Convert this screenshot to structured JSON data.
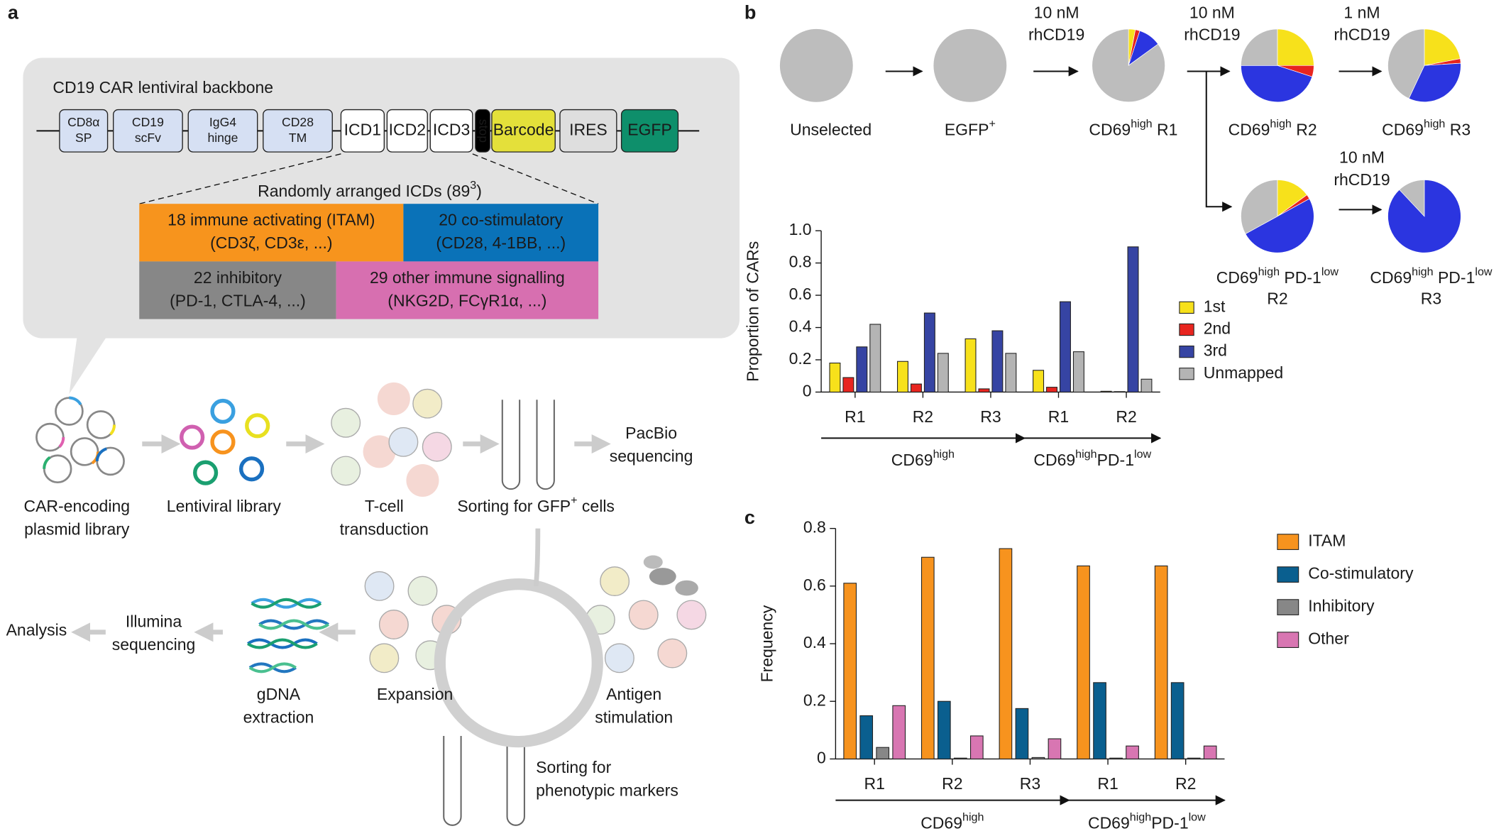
{
  "panel_labels": [
    "a",
    "b",
    "c"
  ],
  "diagram": {
    "title": "CD19 CAR lentiviral backbone",
    "segments": [
      [
        "CD8α",
        "SP"
      ],
      [
        "CD19",
        "scFv"
      ],
      [
        "IgG4",
        "hinge"
      ],
      [
        "CD28",
        "TM"
      ],
      [
        "ICD1"
      ],
      [
        "ICD2"
      ],
      [
        "ICD3"
      ],
      [
        "stop"
      ],
      [
        "Barcode"
      ],
      [
        "IRES"
      ],
      [
        "EGFP"
      ]
    ],
    "arrangement": [
      "Randomly arranged ICDs (89",
      "3",
      ")"
    ],
    "icd_classes": [
      [
        "18 immune activating (ITAM)",
        "(CD3ζ, CD3ε, ...)"
      ],
      [
        "20 co-stimulatory",
        "(CD28, 4-1BB, ...)"
      ],
      [
        "22 inhibitory",
        "(PD-1, CTLA-4, ...)"
      ],
      [
        "29 other immune signalling",
        "(NKG2D, FCγR1α, ...)"
      ]
    ],
    "steps": [
      [
        "CAR-encoding",
        "plasmid library"
      ],
      [
        "Lentiviral library"
      ],
      [
        "T-cell",
        "transduction"
      ],
      [
        [
          "Sorting for GFP",
          "+",
          " cells"
        ]
      ],
      [
        "PacBio",
        "sequencing"
      ],
      [
        "Antigen",
        "stimulation"
      ],
      [
        "Sorting for",
        "phenotypic markers"
      ],
      [
        "Expansion"
      ],
      [
        "gDNA",
        "extraction"
      ],
      [
        "Illumina",
        "sequencing"
      ],
      [
        "Analysis"
      ]
    ]
  },
  "treatments": [
    [
      "10 nM",
      "rhCD19"
    ],
    [
      "10 nM",
      "rhCD19"
    ],
    [
      "1 nM",
      "rhCD19"
    ],
    [
      "10 nM",
      "rhCD19"
    ]
  ],
  "chart_data": [
    {
      "type": "pie",
      "label": [
        [
          "Unselected"
        ]
      ],
      "values": [
        0,
        0,
        0,
        100
      ],
      "colors": [
        "#f7e11b",
        "#e8251f",
        "#2b35e0",
        "#bdbdbd"
      ]
    },
    {
      "type": "pie",
      "label": [
        [
          "EGFP",
          "+"
        ]
      ],
      "values": [
        0,
        0,
        0,
        100
      ],
      "colors": [
        "#f7e11b",
        "#e8251f",
        "#2b35e0",
        "#bdbdbd"
      ]
    },
    {
      "type": "pie",
      "label": [
        [
          "CD69",
          "high",
          " R1"
        ]
      ],
      "values": [
        3,
        2,
        10,
        85
      ],
      "colors": [
        "#f7e11b",
        "#e8251f",
        "#2b35e0",
        "#bdbdbd"
      ]
    },
    {
      "type": "pie",
      "label": [
        [
          "CD69",
          "high",
          " R2"
        ]
      ],
      "values": [
        25,
        5,
        45,
        25
      ],
      "colors": [
        "#f7e11b",
        "#e8251f",
        "#2b35e0",
        "#bdbdbd"
      ]
    },
    {
      "type": "pie",
      "label": [
        [
          "CD69",
          "high",
          " R3"
        ]
      ],
      "values": [
        22,
        2,
        33,
        43
      ],
      "colors": [
        "#f7e11b",
        "#e8251f",
        "#2b35e0",
        "#bdbdbd"
      ]
    },
    {
      "type": "pie",
      "label": [
        [
          "CD69",
          "high",
          " PD-1",
          "low"
        ],
        [
          "R2"
        ]
      ],
      "values": [
        15,
        2,
        50,
        33
      ],
      "colors": [
        "#f7e11b",
        "#e8251f",
        "#2b35e0",
        "#bdbdbd"
      ]
    },
    {
      "type": "pie",
      "label": [
        [
          "CD69",
          "high",
          " PD-1",
          "low"
        ],
        [
          "R3"
        ]
      ],
      "values": [
        0,
        0,
        88,
        12
      ],
      "colors": [
        "#f7e11b",
        "#e8251f",
        "#2b35e0",
        "#bdbdbd"
      ]
    },
    {
      "type": "bar",
      "ylabel": "Proportion of CARs",
      "categories": [
        "R1",
        "R2",
        "R3",
        "R1",
        "R2"
      ],
      "groups": [
        [
          "CD69",
          "high"
        ],
        [
          "CD69",
          "high",
          "PD-1",
          "low"
        ]
      ],
      "series": [
        {
          "name": "1st",
          "color": "#f7e11b",
          "values": [
            0.18,
            0.19,
            0.33,
            0.135,
            0.005
          ]
        },
        {
          "name": "2nd",
          "color": "#e8251f",
          "values": [
            0.09,
            0.05,
            0.02,
            0.03,
            0.003
          ]
        },
        {
          "name": "3rd",
          "color": "#3644a3",
          "values": [
            0.28,
            0.49,
            0.38,
            0.56,
            0.9
          ]
        },
        {
          "name": "Unmapped",
          "color": "#b4b4b4",
          "values": [
            0.42,
            0.24,
            0.24,
            0.25,
            0.08
          ]
        }
      ],
      "ylim": [
        0,
        1
      ],
      "yticks": [
        0,
        0.2,
        0.4,
        0.6,
        0.8,
        {
          "value": 1,
          "label": "1.0"
        }
      ]
    },
    {
      "type": "bar",
      "ylabel": "Frequency",
      "categories": [
        "R1",
        "R2",
        "R3",
        "R1",
        "R2"
      ],
      "groups": [
        [
          "CD69",
          "high"
        ],
        [
          "CD69",
          "high",
          "PD-1",
          "low"
        ]
      ],
      "series": [
        {
          "name": "ITAM",
          "color": "#f7931e",
          "values": [
            0.61,
            0.7,
            0.73,
            0.67,
            0.67
          ]
        },
        {
          "name": "Co-stimulatory",
          "color": "#0a5f8f",
          "values": [
            0.15,
            0.2,
            0.175,
            0.265,
            0.265
          ]
        },
        {
          "name": "Inhibitory",
          "color": "#878787",
          "values": [
            0.04,
            0.003,
            0.005,
            0.003,
            0.003
          ]
        },
        {
          "name": "Other",
          "color": "#d876b2",
          "values": [
            0.185,
            0.08,
            0.07,
            0.045,
            0.045
          ]
        }
      ],
      "ylim": [
        0,
        0.8
      ],
      "yticks": [
        0,
        0.2,
        0.4,
        0.6,
        0.8
      ]
    }
  ]
}
